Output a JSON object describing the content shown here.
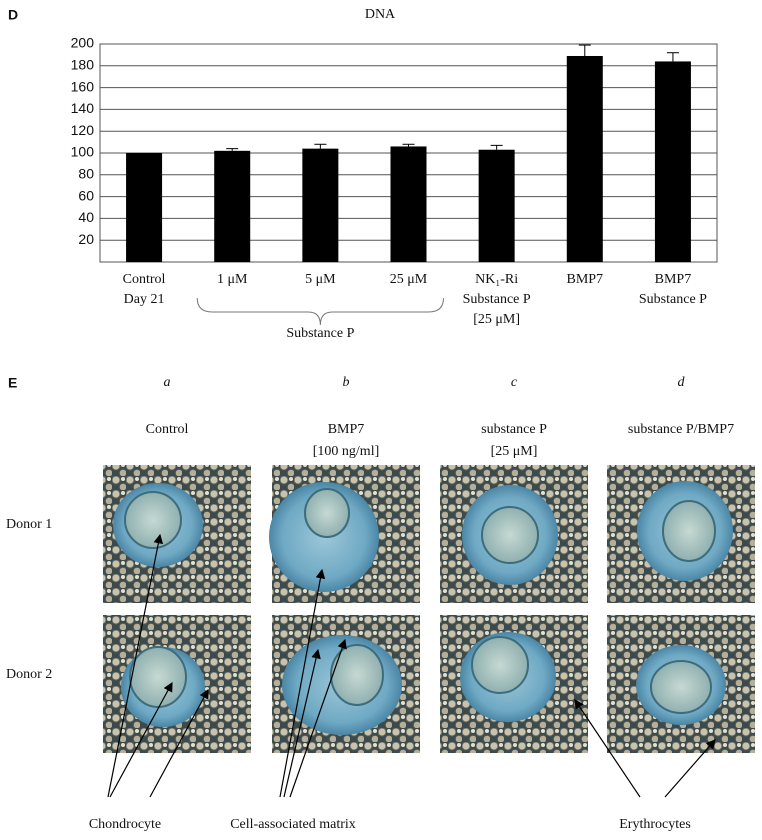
{
  "chart_data": {
    "type": "bar",
    "panel_label": "D",
    "title": "DNA",
    "categories": [
      [
        "Control",
        "Day 21"
      ],
      [
        "1 μM"
      ],
      [
        "5 μM"
      ],
      [
        "25 μM"
      ],
      [
        "NK₁-Ri",
        "Substance P",
        "[25 μM]"
      ],
      [
        "BMP7"
      ],
      [
        "BMP7",
        "Substance P"
      ]
    ],
    "values": [
      100,
      102,
      104,
      106,
      103,
      189,
      184
    ],
    "errors": [
      0,
      2,
      4,
      2,
      4,
      10,
      8
    ],
    "color": "#000000",
    "ylim": [
      0,
      200
    ],
    "yticks": [
      20,
      40,
      60,
      80,
      100,
      120,
      140,
      160,
      180,
      200
    ],
    "grid": true,
    "group_label": "Substance P"
  },
  "panel_e": {
    "label": "E",
    "columns": [
      {
        "letter": "a",
        "header": [
          "Control"
        ]
      },
      {
        "letter": "b",
        "header": [
          "BMP7",
          "[100 ng/ml]"
        ]
      },
      {
        "letter": "c",
        "header": [
          "substance P",
          "[25 μM]"
        ]
      },
      {
        "letter": "d",
        "header": [
          "substance P/BMP7"
        ]
      }
    ],
    "rows": [
      "Donor 1",
      "Donor 2"
    ],
    "annotations": [
      "Chondrocyte",
      "Cell-associated matrix",
      "Erythrocytes"
    ]
  }
}
